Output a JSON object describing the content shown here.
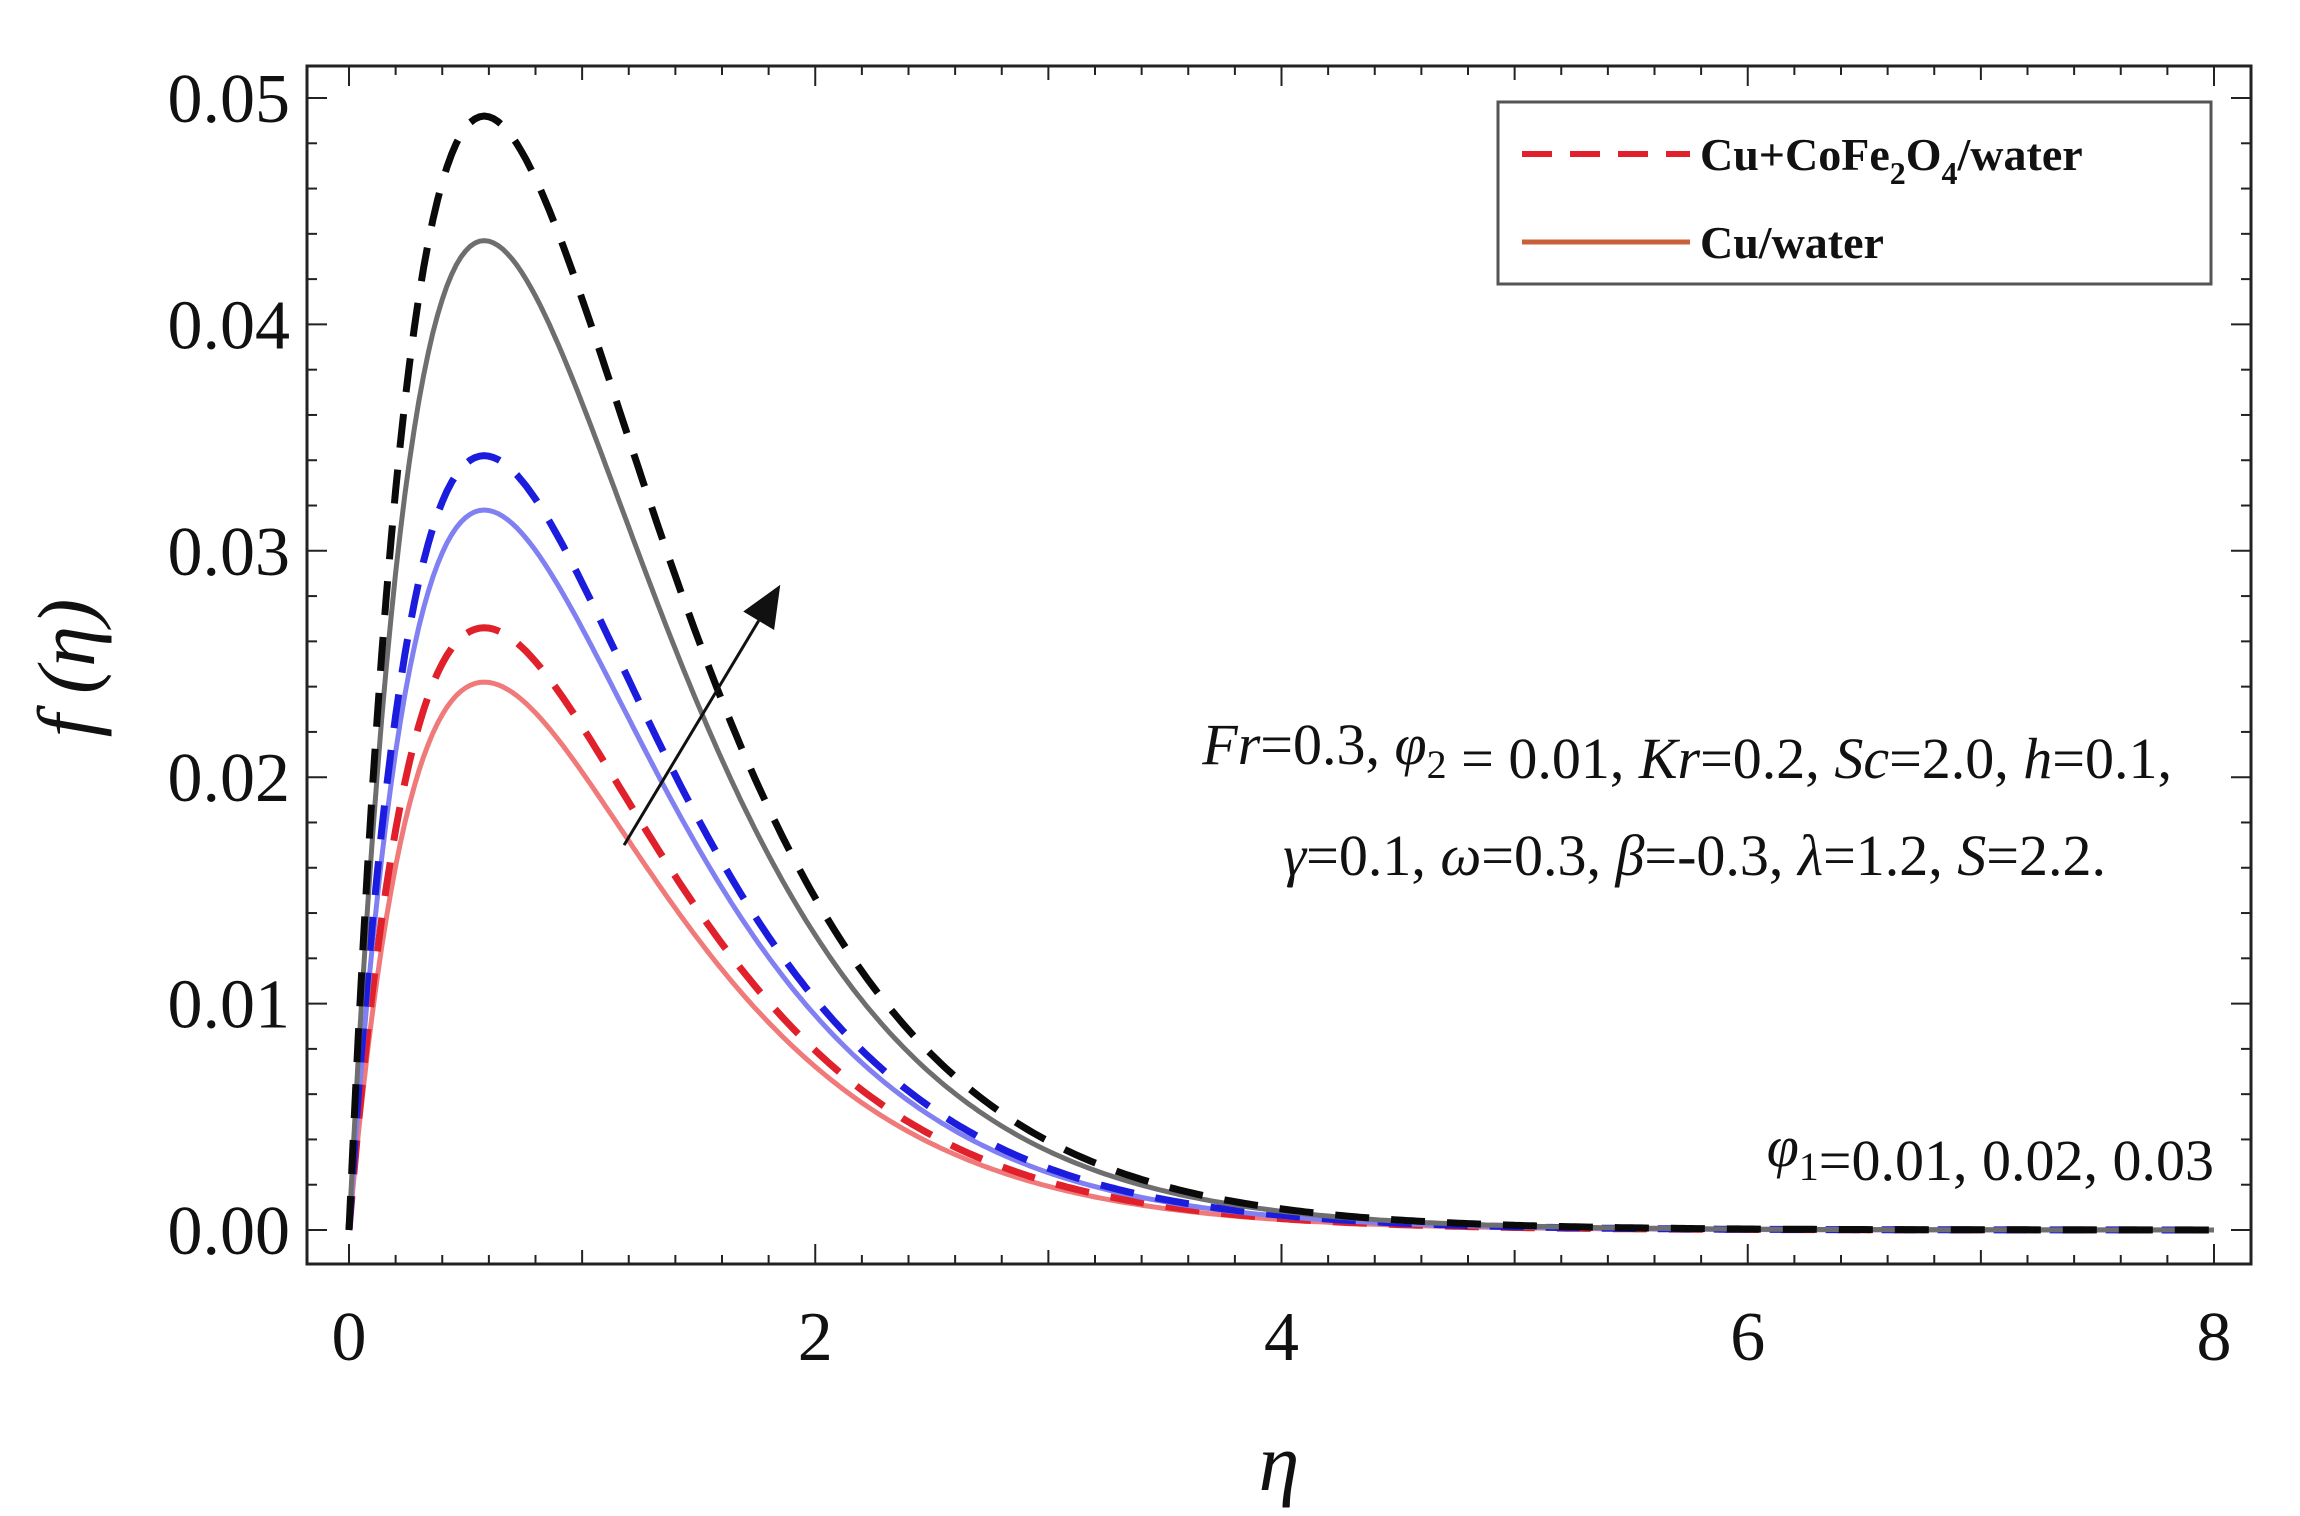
{
  "chart_data": {
    "type": "line",
    "title": "",
    "xlabel": "η",
    "ylabel": "f (η)",
    "xlim": [
      0,
      8
    ],
    "ylim": [
      0,
      0.05
    ],
    "x_ticks": [
      "0",
      "2",
      "4",
      "6",
      "8"
    ],
    "y_ticks": [
      "0.00",
      "0.01",
      "0.02",
      "0.03",
      "0.04",
      "0.05"
    ],
    "legend_position": "top-right",
    "legend": [
      {
        "label_main": "Cu+CoFe",
        "sub1": "2",
        "label_mid": "O",
        "sub2": "4",
        "label_end": "/water",
        "style": "dashed",
        "color": "#e0202a"
      },
      {
        "label": "Cu/water",
        "style": "solid",
        "color": "#c8603a"
      }
    ],
    "annotation_params": {
      "line1": [
        {
          "text": "Fr",
          "italic": true
        },
        {
          "text": "=0.3, "
        },
        {
          "text": "φ",
          "italic": true,
          "sub": "2"
        },
        {
          "text": " = 0.01, "
        },
        {
          "text": "Kr",
          "italic": true
        },
        {
          "text": "=0.2, "
        },
        {
          "text": "Sc",
          "italic": true
        },
        {
          "text": "=2.0, "
        },
        {
          "text": "h",
          "italic": true
        },
        {
          "text": "=0.1,"
        }
      ],
      "line2": [
        {
          "text": "γ",
          "italic": true
        },
        {
          "text": "=0.1, "
        },
        {
          "text": "ω",
          "italic": true
        },
        {
          "text": "=0.3, "
        },
        {
          "text": "β",
          "italic": true
        },
        {
          "text": "=-0.3, "
        },
        {
          "text": "λ",
          "italic": true
        },
        {
          "text": "=1.2, "
        },
        {
          "text": "S",
          "italic": true
        },
        {
          "text": "=2.2."
        }
      ]
    },
    "annotation_phi": [
      {
        "text": "φ",
        "italic": true,
        "sub": "1"
      },
      {
        "text": "=0.01, 0.02, 0.03"
      }
    ],
    "arrow": {
      "from": [
        1.18,
        0.017
      ],
      "to": [
        1.85,
        0.0285
      ],
      "meaning": "increasing φ1"
    },
    "series": [
      {
        "name": "Cu/water φ1=0.01",
        "style": "solid",
        "color": "#f07a7a",
        "peak": 0.0242,
        "peak_x": 0.58
      },
      {
        "name": "Cu+CoFe2O4/water φ1=0.01",
        "style": "dashed",
        "color": "#e0202a",
        "peak": 0.0266,
        "peak_x": 0.58
      },
      {
        "name": "Cu/water φ1=0.02",
        "style": "solid",
        "color": "#8080f2",
        "peak": 0.0318,
        "peak_x": 0.58
      },
      {
        "name": "Cu+CoFe2O4/water φ1=0.02",
        "style": "dashed",
        "color": "#1c1cde",
        "peak": 0.0342,
        "peak_x": 0.58
      },
      {
        "name": "Cu/water φ1=0.03",
        "style": "solid",
        "color": "#6e6e6e",
        "peak": 0.0437,
        "peak_x": 0.58
      },
      {
        "name": "Cu+CoFe2O4/water φ1=0.03",
        "style": "dashed",
        "color": "#0a0a0a",
        "peak": 0.0492,
        "peak_x": 0.58
      }
    ]
  }
}
